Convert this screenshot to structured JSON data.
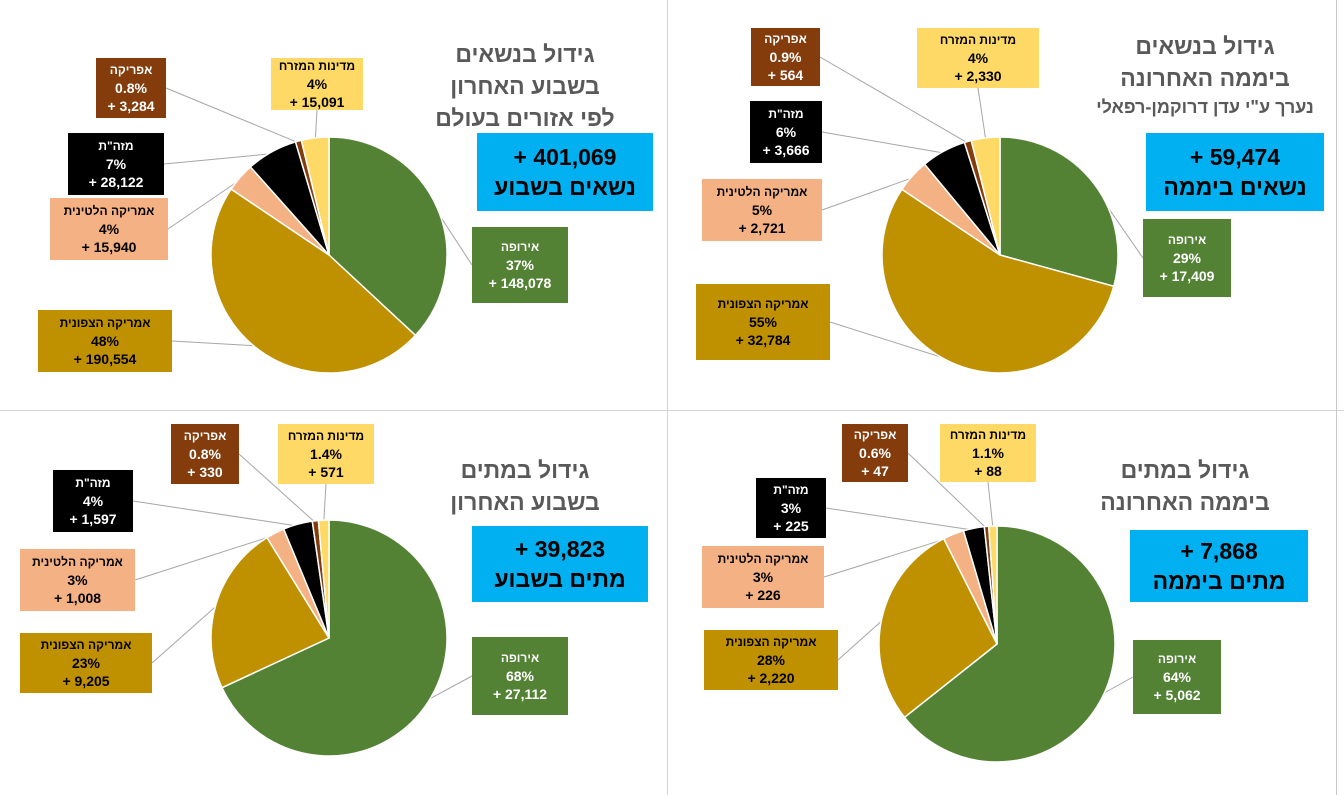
{
  "colors": {
    "europe": "#548235",
    "north_america": "#bf9000",
    "latin_america": "#f4b183",
    "middle_east_asia": "#000000",
    "africa": "#843c0c",
    "middle_east": "#ffd966",
    "total_box": "#00b0f0"
  },
  "panels": [
    {
      "title": [
        "גידול בנשאים",
        "בשבוע האחרון",
        "לפי אזורים בעולם"
      ],
      "subtitle": "",
      "total": [
        "+ 401,069",
        "נשאים בשבוע"
      ]
    },
    {
      "title": [
        "גידול בנשאים",
        "ביממה האחרונה"
      ],
      "subtitle": "נערך ע\"י עדן דרוקמן-רפאלי",
      "total": [
        "+ 59,474",
        "נשאים ביממה"
      ]
    },
    {
      "title": [
        "גידול במתים",
        "בשבוע האחרון"
      ],
      "subtitle": "",
      "total": [
        "+ 39,823",
        "מתים בשבוע"
      ]
    },
    {
      "title": [
        "גידול במתים",
        "ביממה האחרונה"
      ],
      "subtitle": "",
      "total": [
        "+ 7,868",
        "מתים ביממה"
      ]
    }
  ],
  "chart_data": [
    {
      "type": "pie",
      "title": "גידול בנשאים בשבוע האחרון לפי אזורים בעולם",
      "slices": [
        {
          "key": "europe",
          "name": "אירופה",
          "percent": "37%",
          "value": 148078,
          "label": "+ 148,078"
        },
        {
          "key": "north_america",
          "name": "אמריקה הצפונית",
          "percent": "48%",
          "value": 190554,
          "label": "+ 190,554"
        },
        {
          "key": "latin_america",
          "name": "אמריקה הלטינית",
          "percent": "4%",
          "value": 15940,
          "label": "+ 15,940"
        },
        {
          "key": "middle_east_asia",
          "name": "מזה\"ת",
          "percent": "7%",
          "value": 28122,
          "label": "+ 28,122"
        },
        {
          "key": "africa",
          "name": "אפריקה",
          "percent": "0.8%",
          "value": 3284,
          "label": "+ 3,284"
        },
        {
          "key": "middle_east",
          "name": "מדינות המזרח",
          "percent": "4%",
          "value": 15091,
          "label": "+ 15,091"
        }
      ]
    },
    {
      "type": "pie",
      "title": "גידול בנשאים ביממה האחרונה",
      "slices": [
        {
          "key": "europe",
          "name": "אירופה",
          "percent": "29%",
          "value": 17409,
          "label": "+ 17,409"
        },
        {
          "key": "north_america",
          "name": "אמריקה הצפונית",
          "percent": "55%",
          "value": 32784,
          "label": "+ 32,784"
        },
        {
          "key": "latin_america",
          "name": "אמריקה הלטינית",
          "percent": "5%",
          "value": 2721,
          "label": "+ 2,721"
        },
        {
          "key": "middle_east_asia",
          "name": "מזה\"ת",
          "percent": "6%",
          "value": 3666,
          "label": "+ 3,666"
        },
        {
          "key": "africa",
          "name": "אפריקה",
          "percent": "0.9%",
          "value": 564,
          "label": "+ 564"
        },
        {
          "key": "middle_east",
          "name": "מדינות המזרח",
          "percent": "4%",
          "value": 2330,
          "label": "+ 2,330"
        }
      ]
    },
    {
      "type": "pie",
      "title": "גידול במתים בשבוע האחרון",
      "slices": [
        {
          "key": "europe",
          "name": "אירופה",
          "percent": "68%",
          "value": 27112,
          "label": "+ 27,112"
        },
        {
          "key": "north_america",
          "name": "אמריקה הצפונית",
          "percent": "23%",
          "value": 9205,
          "label": "+ 9,205"
        },
        {
          "key": "latin_america",
          "name": "אמריקה הלטינית",
          "percent": "3%",
          "value": 1008,
          "label": "+ 1,008"
        },
        {
          "key": "middle_east_asia",
          "name": "מזה\"ת",
          "percent": "4%",
          "value": 1597,
          "label": "+ 1,597"
        },
        {
          "key": "africa",
          "name": "אפריקה",
          "percent": "0.8%",
          "value": 330,
          "label": "+ 330"
        },
        {
          "key": "middle_east",
          "name": "מדינות המזרח",
          "percent": "1.4%",
          "value": 571,
          "label": "+ 571"
        }
      ]
    },
    {
      "type": "pie",
      "title": "גידול במתים ביממה האחרונה",
      "slices": [
        {
          "key": "europe",
          "name": "אירופה",
          "percent": "64%",
          "value": 5062,
          "label": "+ 5,062"
        },
        {
          "key": "north_america",
          "name": "אמריקה הצפונית",
          "percent": "28%",
          "value": 2220,
          "label": "+ 2,220"
        },
        {
          "key": "latin_america",
          "name": "אמריקה הלטינית",
          "percent": "3%",
          "value": 226,
          "label": "+ 226"
        },
        {
          "key": "middle_east_asia",
          "name": "מזה\"ת",
          "percent": "3%",
          "value": 225,
          "label": "+ 225"
        },
        {
          "key": "africa",
          "name": "אפריקה",
          "percent": "0.6%",
          "value": 47,
          "label": "+ 47"
        },
        {
          "key": "middle_east",
          "name": "מדינות המזרח",
          "percent": "1.1%",
          "value": 88,
          "label": "+ 88"
        }
      ]
    }
  ]
}
